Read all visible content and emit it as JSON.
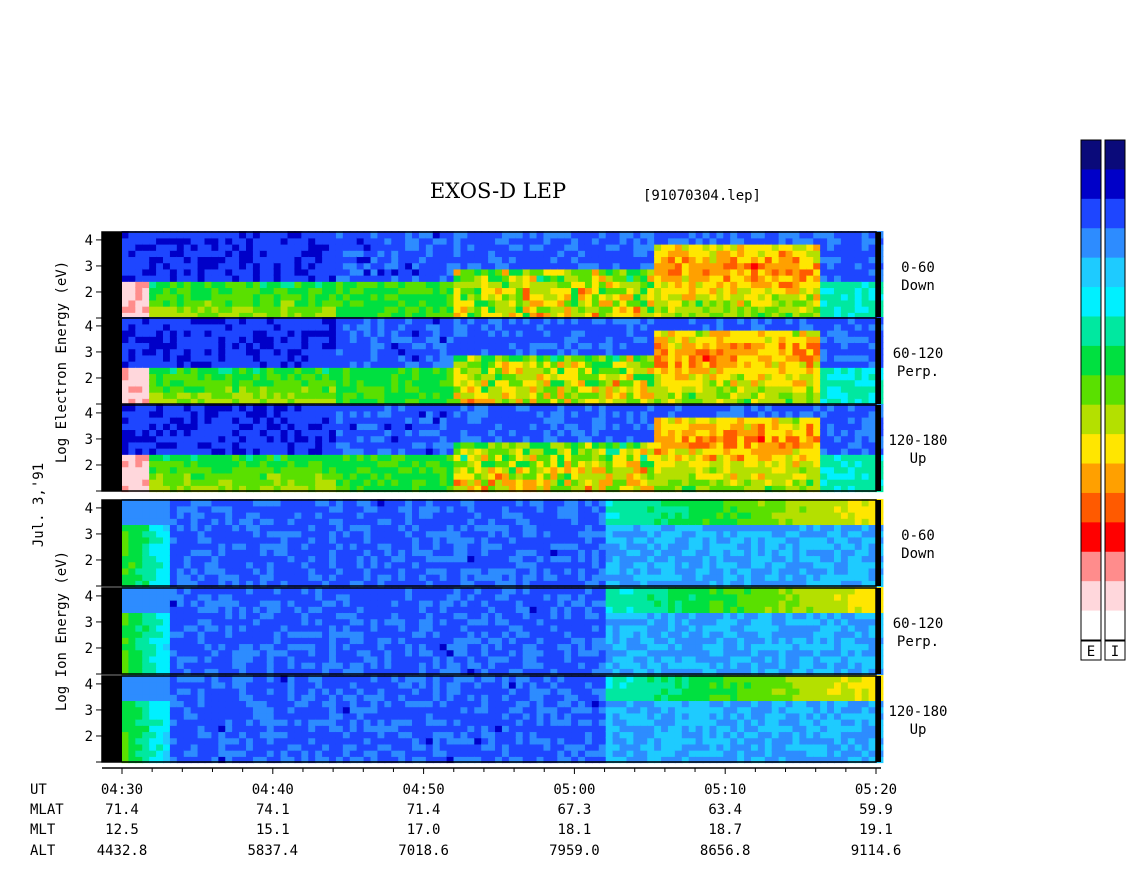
{
  "title": "EXOS-D LEP",
  "file_tag": "[91070304.lep]",
  "date_label": "Jul. 3,'91",
  "electron_axis_label": [
    "Log",
    "Electron",
    "Energy (eV)"
  ],
  "ion_axis_label": [
    "Log",
    "Ion",
    "Energy (eV)"
  ],
  "colorbar_labels": [
    "E",
    "I"
  ],
  "colorbar_colors": [
    "#0a0a7a",
    "#0000c8",
    "#1e46ff",
    "#2d8cff",
    "#1ecbff",
    "#00f0ff",
    "#00e8a0",
    "#00e040",
    "#5ae000",
    "#b4e000",
    "#ffe600",
    "#ffa000",
    "#ff5a00",
    "#ff0000",
    "#ff8c8c",
    "#ffd7dc",
    "#ffffff"
  ],
  "chart_data": {
    "type": "heatmap",
    "title": "EXOS-D LEP",
    "x_range_ut": [
      "04:30",
      "05:20"
    ],
    "y_ticks": [
      "1",
      "2",
      "3",
      "4"
    ],
    "y_tick_labels_shown": [
      "2",
      "3",
      "4"
    ],
    "panels": [
      {
        "species": "Electron",
        "group": "electron",
        "angle": "0-60",
        "direction": "Down"
      },
      {
        "species": "Electron",
        "group": "electron",
        "angle": "60-120",
        "direction": "Perp."
      },
      {
        "species": "Electron",
        "group": "electron",
        "angle": "120-180",
        "direction": "Up"
      },
      {
        "species": "Ion",
        "group": "ion",
        "angle": "0-60",
        "direction": "Down"
      },
      {
        "species": "Ion",
        "group": "ion",
        "angle": "60-120",
        "direction": "Perp."
      },
      {
        "species": "Ion",
        "group": "ion",
        "angle": "120-180",
        "direction": "Up"
      }
    ],
    "orbit_table": {
      "row_labels": [
        "UT",
        "MLAT",
        "MLT",
        "ALT"
      ],
      "columns": [
        {
          "UT": "04:30",
          "MLAT": "71.4",
          "MLT": "12.5",
          "ALT": "4432.8"
        },
        {
          "UT": "04:40",
          "MLAT": "74.1",
          "MLT": "15.1",
          "ALT": "5837.4"
        },
        {
          "UT": "04:50",
          "MLAT": "71.4",
          "MLT": "17.0",
          "ALT": "7018.6"
        },
        {
          "UT": "05:00",
          "MLAT": "67.3",
          "MLT": "18.1",
          "ALT": "7959.0"
        },
        {
          "UT": "05:10",
          "MLAT": "63.4",
          "MLT": "18.7",
          "ALT": "8656.8"
        },
        {
          "UT": "05:20",
          "MLAT": "59.9",
          "MLT": "19.1",
          "ALT": "9114.6"
        }
      ]
    }
  }
}
